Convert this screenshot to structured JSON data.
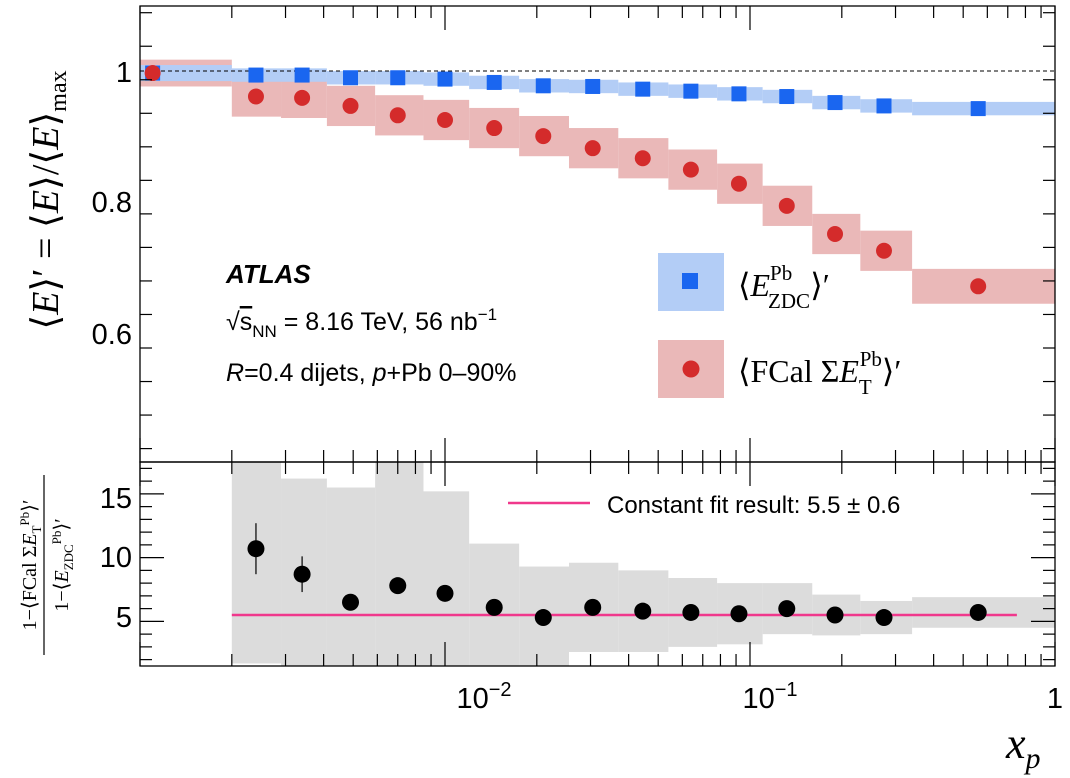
{
  "chart_data": [
    {
      "type": "scatter",
      "panel": "top",
      "ylabel": "⟨E⟩′ = ⟨E⟩/⟨E⟩max",
      "xscale": "log",
      "xlim": [
        0.001,
        1
      ],
      "ylim": [
        0.42,
        1.1
      ],
      "yticks": [
        "0.6",
        "0.8",
        "1"
      ],
      "reference_line": 1.0,
      "grid": false,
      "legend_position": "right",
      "annotations": {
        "experiment": "ATLAS",
        "energy": "√sNN = 8.16 TeV, 56 nb⁻¹",
        "selection": "R=0.4 dijets, p+Pb 0–90%"
      },
      "series": [
        {
          "name": "⟨E_ZDC^Pb⟩′",
          "marker": "square",
          "color": "#1a66f0",
          "band_color": "#b3cdf6",
          "x": [
            0.0011,
            0.0024,
            0.0034,
            0.0049,
            0.007,
            0.01,
            0.0145,
            0.021,
            0.0305,
            0.0445,
            0.064,
            0.092,
            0.132,
            0.19,
            0.275,
            0.56
          ],
          "y": [
            1.0,
            0.997,
            0.997,
            0.993,
            0.993,
            0.991,
            0.986,
            0.981,
            0.98,
            0.976,
            0.973,
            0.969,
            0.965,
            0.956,
            0.951,
            0.947
          ],
          "sys": [
            0.012,
            0.01,
            0.01,
            0.01,
            0.01,
            0.01,
            0.01,
            0.01,
            0.01,
            0.01,
            0.01,
            0.01,
            0.01,
            0.01,
            0.01,
            0.01
          ],
          "bins": [
            [
              0.00045,
              0.002
            ],
            [
              0.002,
              0.0029
            ],
            [
              0.0029,
              0.0041
            ],
            [
              0.0041,
              0.0059
            ],
            [
              0.0059,
              0.0085
            ],
            [
              0.0085,
              0.012
            ],
            [
              0.012,
              0.0175
            ],
            [
              0.0175,
              0.0255
            ],
            [
              0.0255,
              0.037
            ],
            [
              0.037,
              0.054
            ],
            [
              0.054,
              0.078
            ],
            [
              0.078,
              0.11
            ],
            [
              0.11,
              0.16
            ],
            [
              0.16,
              0.23
            ],
            [
              0.23,
              0.34
            ],
            [
              0.34,
              1.0
            ]
          ]
        },
        {
          "name": "⟨FCal ΣE_T^Pb⟩′",
          "marker": "circle",
          "color": "#d42b2b",
          "band_color": "#eab8b8",
          "x": [
            0.0011,
            0.0024,
            0.0034,
            0.0049,
            0.007,
            0.01,
            0.0145,
            0.021,
            0.0305,
            0.0445,
            0.064,
            0.092,
            0.132,
            0.19,
            0.275,
            0.56
          ],
          "y": [
            1.0,
            0.965,
            0.963,
            0.951,
            0.937,
            0.93,
            0.918,
            0.906,
            0.888,
            0.873,
            0.856,
            0.835,
            0.802,
            0.76,
            0.735,
            0.682
          ],
          "sys": [
            0.02,
            0.03,
            0.03,
            0.03,
            0.03,
            0.03,
            0.03,
            0.03,
            0.03,
            0.03,
            0.03,
            0.03,
            0.03,
            0.03,
            0.03,
            0.026
          ],
          "bins": [
            [
              0.00045,
              0.002
            ],
            [
              0.002,
              0.0029
            ],
            [
              0.0029,
              0.0041
            ],
            [
              0.0041,
              0.0059
            ],
            [
              0.0059,
              0.0085
            ],
            [
              0.0085,
              0.012
            ],
            [
              0.012,
              0.0175
            ],
            [
              0.0175,
              0.0255
            ],
            [
              0.0255,
              0.037
            ],
            [
              0.037,
              0.054
            ],
            [
              0.054,
              0.078
            ],
            [
              0.078,
              0.11
            ],
            [
              0.11,
              0.16
            ],
            [
              0.16,
              0.23
            ],
            [
              0.23,
              0.34
            ],
            [
              0.34,
              1.0
            ]
          ]
        }
      ]
    },
    {
      "type": "scatter",
      "panel": "bottom",
      "ylabel": "1−⟨FCal ΣE_T^Pb⟩′ / 1−⟨E_ZDC^Pb⟩′",
      "xlabel": "x_p",
      "xscale": "log",
      "xlim": [
        0.001,
        1
      ],
      "ylim": [
        1.5,
        17.5
      ],
      "yticks": [
        "5",
        "10",
        "15"
      ],
      "xticks": [
        "10⁻²",
        "10⁻¹",
        "1"
      ],
      "fit": {
        "label": "Constant fit result: 5.5 ± 0.6",
        "value": 5.5,
        "x_range": [
          0.002,
          0.75
        ],
        "color": "#f0388c"
      },
      "series": [
        {
          "name": "ratio",
          "marker": "circle",
          "color": "#000000",
          "band_color": "#dcdcdc",
          "x": [
            0.0024,
            0.0034,
            0.0049,
            0.007,
            0.01,
            0.0145,
            0.021,
            0.0305,
            0.0445,
            0.064,
            0.092,
            0.132,
            0.19,
            0.275,
            0.56
          ],
          "y": [
            10.7,
            8.7,
            6.5,
            7.8,
            7.2,
            6.1,
            5.3,
            6.1,
            5.8,
            5.7,
            5.6,
            6.0,
            5.5,
            5.3,
            5.7
          ],
          "stat": [
            2.0,
            1.4,
            0.5,
            0.6,
            0.5,
            0.4,
            0.3,
            0.3,
            0.3,
            0.3,
            0.3,
            0.3,
            0.3,
            0.3,
            0.3
          ],
          "sys": [
            9.0,
            7.5,
            9.0,
            10.0,
            8.0,
            5.0,
            4.0,
            3.5,
            3.2,
            2.7,
            2.4,
            2.0,
            1.6,
            1.3,
            1.2
          ],
          "bins": [
            [
              0.002,
              0.0029
            ],
            [
              0.0029,
              0.0041
            ],
            [
              0.0041,
              0.0059
            ],
            [
              0.0059,
              0.0085
            ],
            [
              0.0085,
              0.012
            ],
            [
              0.012,
              0.0175
            ],
            [
              0.0175,
              0.0255
            ],
            [
              0.0255,
              0.037
            ],
            [
              0.037,
              0.054
            ],
            [
              0.054,
              0.078
            ],
            [
              0.078,
              0.11
            ],
            [
              0.11,
              0.16
            ],
            [
              0.16,
              0.23
            ],
            [
              0.23,
              0.34
            ],
            [
              0.34,
              1.0
            ]
          ]
        }
      ]
    }
  ]
}
